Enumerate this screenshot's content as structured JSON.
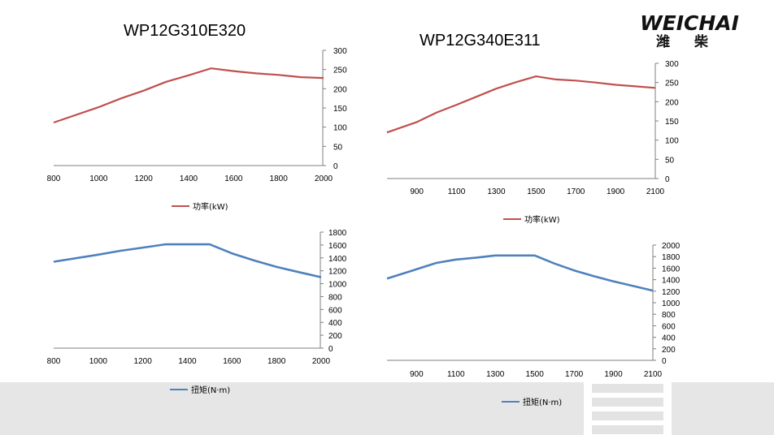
{
  "brand": {
    "name": "WEICHAI",
    "chinese": "潍柴",
    "color": "#c8102e"
  },
  "colors": {
    "power_line": "#c0504d",
    "torque_line": "#4f81bd",
    "axis": "#7f7f7f"
  },
  "chart_data": [
    {
      "id": "wp12g310-power",
      "type": "line",
      "title": "WP12G310E320",
      "x": [
        800,
        1000,
        1100,
        1200,
        1300,
        1400,
        1500,
        1600,
        1700,
        1800,
        1900,
        2000
      ],
      "xticks": [
        "800",
        "1000",
        "1200",
        "1400",
        "1600",
        "1800",
        "2000"
      ],
      "xlim": [
        800,
        2000
      ],
      "ylim": [
        0,
        300
      ],
      "yticks": [
        "0",
        "50",
        "100",
        "150",
        "200",
        "250",
        "300"
      ],
      "series": [
        {
          "name": "功率(kW)",
          "values": [
            112,
            152,
            175,
            195,
            218,
            235,
            253,
            246,
            240,
            236,
            230,
            228
          ]
        }
      ]
    },
    {
      "id": "wp12g340-power",
      "type": "line",
      "title": "WP12G340E311",
      "x": [
        750,
        900,
        1000,
        1100,
        1200,
        1300,
        1400,
        1500,
        1600,
        1700,
        1800,
        1900,
        2000,
        2100
      ],
      "xticks": [
        "900",
        "1100",
        "1300",
        "1500",
        "1700",
        "1900",
        "2100"
      ],
      "xlim": [
        750,
        2100
      ],
      "ylim": [
        0,
        300
      ],
      "yticks": [
        "0",
        "50",
        "100",
        "150",
        "200",
        "250",
        "300"
      ],
      "series": [
        {
          "name": "功率(kW)",
          "values": [
            120,
            147,
            172,
            192,
            213,
            234,
            251,
            266,
            258,
            255,
            250,
            244,
            240,
            236
          ]
        }
      ]
    },
    {
      "id": "wp12g310-torque",
      "type": "line",
      "title": "",
      "x": [
        800,
        1000,
        1100,
        1200,
        1300,
        1400,
        1500,
        1600,
        1700,
        1800,
        1900,
        2000
      ],
      "xticks": [
        "800",
        "1000",
        "1200",
        "1400",
        "1600",
        "1800",
        "2000"
      ],
      "xlim": [
        800,
        2000
      ],
      "ylim": [
        0,
        1800
      ],
      "yticks": [
        "0",
        "200",
        "400",
        "600",
        "800",
        "1000",
        "1200",
        "1400",
        "1600",
        "1800"
      ],
      "series": [
        {
          "name": "扭矩(N·m)",
          "values": [
            1340,
            1450,
            1510,
            1560,
            1610,
            1610,
            1610,
            1470,
            1360,
            1260,
            1180,
            1100
          ]
        }
      ]
    },
    {
      "id": "wp12g340-torque",
      "type": "line",
      "title": "",
      "x": [
        750,
        900,
        1000,
        1100,
        1200,
        1300,
        1400,
        1500,
        1600,
        1700,
        1800,
        1900,
        2000,
        2100
      ],
      "xticks": [
        "900",
        "1100",
        "1300",
        "1500",
        "1700",
        "1900",
        "2100"
      ],
      "xlim": [
        750,
        2100
      ],
      "ylim": [
        0,
        2000
      ],
      "yticks": [
        "0",
        "200",
        "400",
        "600",
        "800",
        "1000",
        "1200",
        "1400",
        "1600",
        "1800",
        "2000"
      ],
      "series": [
        {
          "name": "扭矩(N·m)",
          "values": [
            1420,
            1580,
            1690,
            1750,
            1780,
            1820,
            1820,
            1820,
            1680,
            1560,
            1460,
            1370,
            1290,
            1210
          ]
        }
      ]
    }
  ]
}
